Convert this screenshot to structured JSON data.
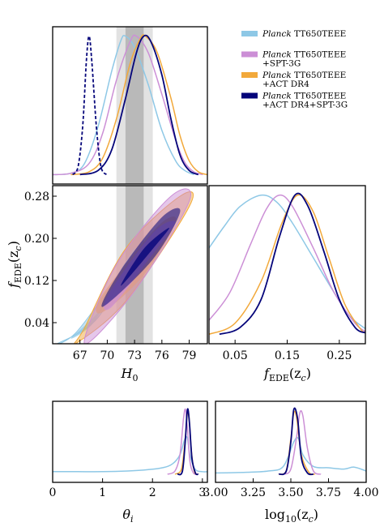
{
  "colors": {
    "planck": "#8ec8e6",
    "spt": "#cc8fd6",
    "act": "#f2a93b",
    "all": "#05057a",
    "band_light": "#d8d8d8",
    "band_dark": "#a8a8a8"
  },
  "legend": {
    "entries": [
      {
        "italic": "Planck",
        "line1": " TT650TEEE",
        "line2": "",
        "color_key": "planck"
      },
      {
        "italic": "Planck",
        "line1": " TT650TEEE",
        "line2": "+SPT-3G",
        "color_key": "spt"
      },
      {
        "italic": "Planck",
        "line1": " TT650TEEE",
        "line2": "+ACT DR4",
        "color_key": "act"
      },
      {
        "italic": "Planck",
        "line1": " TT650TEEE",
        "line2": "+ACT DR4+SPT-3G",
        "color_key": "all"
      }
    ]
  },
  "chart_data": [
    {
      "id": "H0-marginal",
      "type": "line",
      "xlim": [
        64,
        81
      ],
      "ylim": [
        0,
        1
      ],
      "ticks": [],
      "bands": [
        [
          71,
          75
        ],
        [
          72,
          74
        ]
      ],
      "series": [
        {
          "color_key": "planck",
          "points": [
            [
              64,
              0.0
            ],
            [
              66,
              0.01
            ],
            [
              67.5,
              0.08
            ],
            [
              69,
              0.35
            ],
            [
              70.5,
              0.75
            ],
            [
              71.5,
              0.97
            ],
            [
              72,
              1.0
            ],
            [
              73,
              0.92
            ],
            [
              74.5,
              0.65
            ],
            [
              76,
              0.32
            ],
            [
              77.5,
              0.1
            ],
            [
              78.5,
              0.03
            ],
            [
              79.5,
              0.0
            ]
          ]
        },
        {
          "color_key": "spt",
          "points": [
            [
              64,
              0.0
            ],
            [
              66,
              0.01
            ],
            [
              68,
              0.08
            ],
            [
              69.5,
              0.3
            ],
            [
              71,
              0.68
            ],
            [
              72.5,
              0.96
            ],
            [
              73.2,
              1.0
            ],
            [
              74.5,
              0.88
            ],
            [
              76,
              0.58
            ],
            [
              77.5,
              0.25
            ],
            [
              78.5,
              0.09
            ],
            [
              79.5,
              0.02
            ],
            [
              80.5,
              0.0
            ]
          ]
        },
        {
          "color_key": "act",
          "points": [
            [
              66,
              0.0
            ],
            [
              68,
              0.02
            ],
            [
              69.5,
              0.12
            ],
            [
              71,
              0.4
            ],
            [
              72.5,
              0.8
            ],
            [
              73.6,
              0.98
            ],
            [
              74.2,
              1.0
            ],
            [
              75.5,
              0.88
            ],
            [
              77,
              0.55
            ],
            [
              78,
              0.28
            ],
            [
              79,
              0.1
            ],
            [
              80,
              0.02
            ],
            [
              81,
              0.0
            ]
          ]
        },
        {
          "color_key": "all",
          "points": [
            [
              67,
              0.0
            ],
            [
              69,
              0.03
            ],
            [
              70.5,
              0.18
            ],
            [
              72,
              0.55
            ],
            [
              73.2,
              0.88
            ],
            [
              74,
              1.0
            ],
            [
              74.8,
              0.96
            ],
            [
              76,
              0.72
            ],
            [
              77,
              0.4
            ],
            [
              78,
              0.14
            ],
            [
              79,
              0.03
            ],
            [
              80,
              0.0
            ]
          ]
        },
        {
          "color_key": "all",
          "dashed": true,
          "points": [
            [
              66.2,
              0.0
            ],
            [
              66.8,
              0.06
            ],
            [
              67.3,
              0.35
            ],
            [
              67.7,
              0.82
            ],
            [
              68.0,
              1.0
            ],
            [
              68.3,
              0.82
            ],
            [
              68.8,
              0.35
            ],
            [
              69.3,
              0.06
            ],
            [
              69.9,
              0.0
            ]
          ]
        }
      ]
    },
    {
      "id": "H0-fEDE-2D",
      "type": "scatter",
      "xlim": [
        64,
        81
      ],
      "ylim": [
        0.0,
        0.3
      ],
      "bands": [
        [
          71,
          75
        ],
        [
          72,
          74
        ]
      ],
      "ellipses": [
        {
          "color_key": "planck",
          "outer": [
            [
              64.5,
              0.0
            ],
            [
              69,
              0.05
            ],
            [
              73,
              0.18
            ],
            [
              70,
              0.1
            ],
            [
              66.5,
              0.02
            ]
          ],
          "inner": [
            [
              66,
              0.01
            ],
            [
              68.5,
              0.04
            ],
            [
              71,
              0.12
            ],
            [
              69,
              0.06
            ]
          ]
        },
        {
          "color_key": "act",
          "outer": [
            [
              66.5,
              0.0
            ],
            [
              72,
              0.08
            ],
            [
              79,
              0.26
            ],
            [
              78,
              0.28
            ],
            [
              72,
              0.18
            ],
            [
              67.5,
              0.03
            ]
          ],
          "inner": [
            [
              69.5,
              0.06
            ],
            [
              74,
              0.13
            ],
            [
              77.5,
              0.23
            ],
            [
              76,
              0.23
            ],
            [
              72,
              0.15
            ],
            [
              69,
              0.08
            ]
          ]
        },
        {
          "color_key": "spt",
          "outer": [
            [
              67.5,
              0.0
            ],
            [
              73,
              0.1
            ],
            [
              79,
              0.27
            ],
            [
              77,
              0.28
            ],
            [
              71,
              0.15
            ]
          ],
          "inner": [
            [
              70.5,
              0.07
            ],
            [
              75,
              0.17
            ],
            [
              77.5,
              0.23
            ],
            [
              75,
              0.21
            ],
            [
              70,
              0.09
            ]
          ]
        },
        {
          "color_key": "all",
          "outer": [
            [
              69.5,
              0.07
            ],
            [
              75,
              0.16
            ],
            [
              78,
              0.25
            ],
            [
              76,
              0.24
            ],
            [
              71.5,
              0.14
            ]
          ],
          "inner": [
            [
              71.5,
              0.11
            ],
            [
              75,
              0.18
            ],
            [
              76.8,
              0.22
            ],
            [
              74,
              0.18
            ]
          ]
        }
      ],
      "x_ticks": [
        "67",
        "70",
        "73",
        "76",
        "79"
      ],
      "x_tick_values": [
        67,
        70,
        73,
        76,
        79
      ],
      "y_ticks": [
        "0.04",
        "0.12",
        "0.20",
        "0.28"
      ],
      "y_tick_values": [
        0.04,
        0.12,
        0.2,
        0.28
      ],
      "xlabel_main": "H",
      "xlabel_sub": "0",
      "ylabel_main": "f",
      "ylabel_sub": "EDE",
      "ylabel_tail": "(z",
      "ylabel_sub2": "c",
      "ylabel_close": ")"
    },
    {
      "id": "fEDE-marginal",
      "type": "line",
      "xlim": [
        0.0,
        0.3
      ],
      "ylim": [
        0,
        1
      ],
      "x_ticks": [
        "0.05",
        "0.15",
        "0.25"
      ],
      "x_tick_values": [
        0.05,
        0.15,
        0.25
      ],
      "xlabel_main": "f",
      "xlabel_sub": "EDE",
      "xlabel_tail": "(z",
      "xlabel_sub2": "c",
      "xlabel_close": ")",
      "series": [
        {
          "color_key": "planck",
          "points": [
            [
              0.0,
              0.62
            ],
            [
              0.03,
              0.78
            ],
            [
              0.06,
              0.92
            ],
            [
              0.1,
              1.0
            ],
            [
              0.13,
              0.95
            ],
            [
              0.16,
              0.8
            ],
            [
              0.2,
              0.55
            ],
            [
              0.24,
              0.3
            ],
            [
              0.27,
              0.13
            ],
            [
              0.3,
              0.04
            ]
          ]
        },
        {
          "color_key": "spt",
          "points": [
            [
              0.0,
              0.1
            ],
            [
              0.04,
              0.3
            ],
            [
              0.08,
              0.65
            ],
            [
              0.11,
              0.9
            ],
            [
              0.135,
              1.0
            ],
            [
              0.16,
              0.92
            ],
            [
              0.2,
              0.62
            ],
            [
              0.24,
              0.3
            ],
            [
              0.28,
              0.08
            ],
            [
              0.3,
              0.02
            ]
          ]
        },
        {
          "color_key": "act",
          "points": [
            [
              0.0,
              0.0
            ],
            [
              0.05,
              0.08
            ],
            [
              0.1,
              0.38
            ],
            [
              0.14,
              0.8
            ],
            [
              0.17,
              1.0
            ],
            [
              0.2,
              0.88
            ],
            [
              0.23,
              0.55
            ],
            [
              0.26,
              0.22
            ],
            [
              0.29,
              0.04
            ],
            [
              0.3,
              0.01
            ]
          ]
        },
        {
          "color_key": "all",
          "points": [
            [
              0.02,
              0.0
            ],
            [
              0.06,
              0.05
            ],
            [
              0.1,
              0.25
            ],
            [
              0.135,
              0.7
            ],
            [
              0.165,
              1.0
            ],
            [
              0.19,
              0.92
            ],
            [
              0.22,
              0.6
            ],
            [
              0.25,
              0.25
            ],
            [
              0.28,
              0.05
            ],
            [
              0.3,
              0.01
            ]
          ]
        }
      ]
    },
    {
      "id": "theta-marginal",
      "type": "line",
      "xlim": [
        0,
        3.1
      ],
      "ylim": [
        0,
        1
      ],
      "x_ticks": [
        "0",
        "1",
        "2",
        "3"
      ],
      "x_tick_values": [
        0,
        1,
        2,
        3
      ],
      "xlabel_main": "θ",
      "xlabel_sub": "i",
      "series": [
        {
          "color_key": "planck",
          "points": [
            [
              0.0,
              0.04
            ],
            [
              0.5,
              0.04
            ],
            [
              1.0,
              0.04
            ],
            [
              1.5,
              0.05
            ],
            [
              1.9,
              0.07
            ],
            [
              2.2,
              0.1
            ],
            [
              2.4,
              0.16
            ],
            [
              2.55,
              0.3
            ],
            [
              2.65,
              0.55
            ],
            [
              2.7,
              0.55
            ],
            [
              2.75,
              0.3
            ],
            [
              2.85,
              0.08
            ],
            [
              3.0,
              0.04
            ],
            [
              3.1,
              0.04
            ]
          ]
        },
        {
          "color_key": "spt",
          "points": [
            [
              2.3,
              0.0
            ],
            [
              2.45,
              0.05
            ],
            [
              2.55,
              0.3
            ],
            [
              2.62,
              0.85
            ],
            [
              2.66,
              1.0
            ],
            [
              2.7,
              0.7
            ],
            [
              2.75,
              0.2
            ],
            [
              2.82,
              0.02
            ],
            [
              2.9,
              0.0
            ]
          ]
        },
        {
          "color_key": "act",
          "points": [
            [
              2.45,
              0.0
            ],
            [
              2.58,
              0.08
            ],
            [
              2.65,
              0.5
            ],
            [
              2.7,
              0.95
            ],
            [
              2.73,
              0.9
            ],
            [
              2.78,
              0.35
            ],
            [
              2.84,
              0.04
            ],
            [
              2.9,
              0.0
            ]
          ]
        },
        {
          "color_key": "all",
          "points": [
            [
              2.5,
              0.0
            ],
            [
              2.6,
              0.05
            ],
            [
              2.66,
              0.55
            ],
            [
              2.7,
              1.0
            ],
            [
              2.74,
              0.8
            ],
            [
              2.79,
              0.25
            ],
            [
              2.86,
              0.02
            ],
            [
              2.92,
              0.0
            ]
          ]
        }
      ]
    },
    {
      "id": "zc-marginal",
      "type": "line",
      "xlim": [
        3.0,
        4.0
      ],
      "ylim": [
        0,
        1
      ],
      "x_ticks": [
        "3.00",
        "3.25",
        "3.50",
        "3.75",
        "4.00"
      ],
      "x_tick_values": [
        3.0,
        3.25,
        3.5,
        3.75,
        4.0
      ],
      "xlabel_main": "log",
      "xlabel_sub": "10",
      "xlabel_tail": "(z",
      "xlabel_sub2": "c",
      "xlabel_close": ")",
      "series": [
        {
          "color_key": "planck",
          "points": [
            [
              3.0,
              0.02
            ],
            [
              3.2,
              0.03
            ],
            [
              3.35,
              0.05
            ],
            [
              3.45,
              0.12
            ],
            [
              3.52,
              0.5
            ],
            [
              3.55,
              0.55
            ],
            [
              3.58,
              0.3
            ],
            [
              3.65,
              0.12
            ],
            [
              3.75,
              0.1
            ],
            [
              3.85,
              0.08
            ],
            [
              3.92,
              0.11
            ],
            [
              4.0,
              0.05
            ]
          ]
        },
        {
          "color_key": "spt",
          "points": [
            [
              3.45,
              0.0
            ],
            [
              3.5,
              0.08
            ],
            [
              3.54,
              0.6
            ],
            [
              3.56,
              0.95
            ],
            [
              3.58,
              0.9
            ],
            [
              3.61,
              0.4
            ],
            [
              3.65,
              0.05
            ],
            [
              3.7,
              0.0
            ]
          ]
        },
        {
          "color_key": "act",
          "points": [
            [
              3.42,
              0.0
            ],
            [
              3.47,
              0.06
            ],
            [
              3.5,
              0.55
            ],
            [
              3.52,
              0.95
            ],
            [
              3.54,
              0.85
            ],
            [
              3.57,
              0.3
            ],
            [
              3.62,
              0.03
            ],
            [
              3.66,
              0.0
            ]
          ]
        },
        {
          "color_key": "all",
          "points": [
            [
              3.42,
              0.0
            ],
            [
              3.47,
              0.05
            ],
            [
              3.5,
              0.5
            ],
            [
              3.52,
              1.0
            ],
            [
              3.545,
              0.85
            ],
            [
              3.57,
              0.25
            ],
            [
              3.61,
              0.02
            ],
            [
              3.65,
              0.0
            ]
          ]
        }
      ]
    }
  ]
}
